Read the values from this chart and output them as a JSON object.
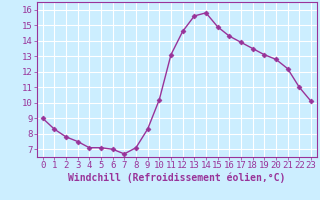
{
  "x": [
    0,
    1,
    2,
    3,
    4,
    5,
    6,
    7,
    8,
    9,
    10,
    11,
    12,
    13,
    14,
    15,
    16,
    17,
    18,
    19,
    20,
    21,
    22,
    23
  ],
  "y": [
    9.0,
    8.3,
    7.8,
    7.5,
    7.1,
    7.1,
    7.0,
    6.7,
    7.1,
    8.3,
    10.2,
    13.1,
    14.6,
    15.6,
    15.8,
    14.9,
    14.3,
    13.9,
    13.5,
    13.1,
    12.8,
    12.2,
    11.0,
    10.1
  ],
  "line_color": "#993399",
  "marker": "D",
  "marker_size": 2.5,
  "bg_color": "#cceeff",
  "grid_color": "#ffffff",
  "xlabel": "Windchill (Refroidissement éolien,°C)",
  "xlabel_fontsize": 7,
  "xlim": [
    -0.5,
    23.5
  ],
  "ylim": [
    6.5,
    16.5
  ],
  "yticks": [
    7,
    8,
    9,
    10,
    11,
    12,
    13,
    14,
    15,
    16
  ],
  "xticks": [
    0,
    1,
    2,
    3,
    4,
    5,
    6,
    7,
    8,
    9,
    10,
    11,
    12,
    13,
    14,
    15,
    16,
    17,
    18,
    19,
    20,
    21,
    22,
    23
  ],
  "tick_fontsize": 6.5,
  "line_width": 1.0
}
